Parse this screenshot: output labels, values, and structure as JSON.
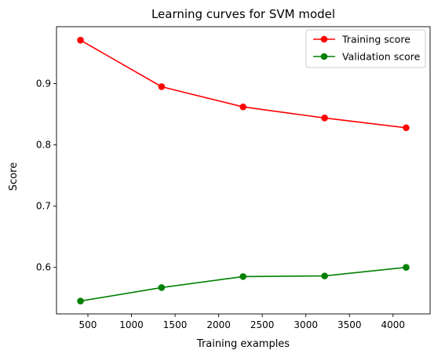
{
  "chart_data": {
    "type": "line",
    "title": "Learning curves for SVM model",
    "xlabel": "Training examples",
    "ylabel": "Score",
    "x": [
      415,
      1345,
      2280,
      3215,
      4150
    ],
    "series": [
      {
        "name": "Training score",
        "color": "#ff0000",
        "marker": "circle",
        "values": [
          0.971,
          0.895,
          0.862,
          0.844,
          0.828
        ]
      },
      {
        "name": "Validation score",
        "color": "#008000",
        "marker": "circle",
        "values": [
          0.545,
          0.567,
          0.585,
          0.586,
          0.6
        ]
      }
    ],
    "xlim": [
      140,
      4425
    ],
    "ylim": [
      0.524,
      0.993
    ],
    "xticks": [
      500,
      1000,
      1500,
      2000,
      2500,
      3000,
      3500,
      4000
    ],
    "xtick_labels": [
      "500",
      "1000",
      "1500",
      "2000",
      "2500",
      "3000",
      "3500",
      "4000"
    ],
    "yticks": [
      0.6,
      0.7,
      0.8,
      0.9
    ],
    "ytick_labels": [
      "0.6",
      "0.7",
      "0.8",
      "0.9"
    ],
    "grid": false,
    "legend_position": "top-right"
  }
}
